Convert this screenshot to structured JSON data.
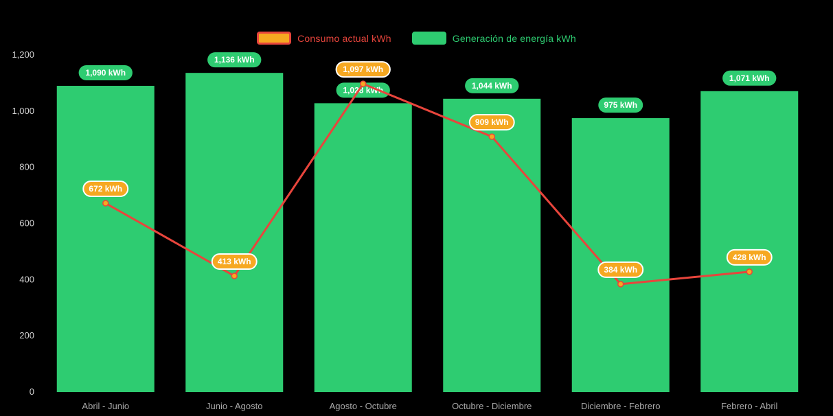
{
  "chart_data": {
    "type": "combo",
    "categories": [
      "Abril - Junio",
      "Junio - Agosto",
      "Agosto - Octubre",
      "Octubre - Diciembre",
      "Diciembre - Febrero",
      "Febrero - Abril"
    ],
    "series": [
      {
        "name": "Consumo actual kWh",
        "type": "line",
        "values": [
          672,
          413,
          1097,
          909,
          384,
          428
        ],
        "labels": [
          "672 kWh",
          "413 kWh",
          "1,097 kWh",
          "909 kWh",
          "384 kWh",
          "428 kWh"
        ],
        "color": "#e8453c",
        "badge_fill": "#f6a821",
        "badge_border": "#ffffff",
        "badge_text_color": "#ffffff"
      },
      {
        "name": "Generación de energía kWh",
        "type": "bar",
        "values": [
          1090,
          1136,
          1028,
          1044,
          975,
          1071
        ],
        "labels": [
          "1,090 kWh",
          "1,136 kWh",
          "1,028 kWh",
          "1,044 kWh",
          "975 kWh",
          "1,071 kWh"
        ],
        "color": "#2ecc71",
        "badge_fill": "#2ecc71",
        "badge_text_color": "#ffffff"
      }
    ],
    "title": "",
    "xlabel": "",
    "ylabel": "",
    "ylim": [
      0,
      1200
    ],
    "ytick_step": 200,
    "ytick_labels": [
      "0",
      "200",
      "400",
      "600",
      "800",
      "1,000",
      "1,200"
    ],
    "value_suffix": " kWh",
    "grid": false,
    "legend_position": "top",
    "background_color": "#000000",
    "ytick_text_color": "#d2d2d2",
    "xtick_text_color": "#a8a8a8"
  }
}
